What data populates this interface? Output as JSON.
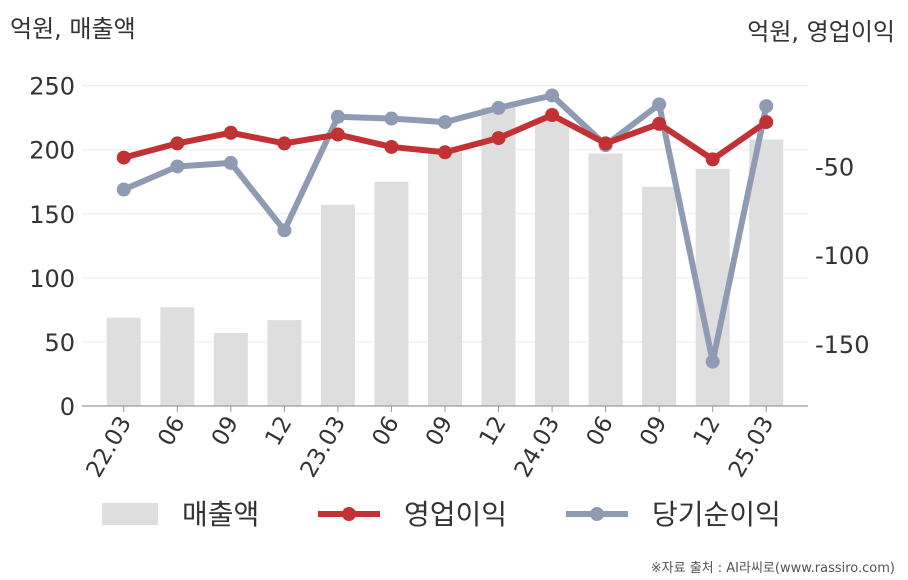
{
  "chart_data": {
    "type": "bar+line",
    "left_axis_label": "억원, 매출액",
    "right_axis_label": "억원, 영업이익",
    "categories": [
      "22.03",
      "06",
      "09",
      "12",
      "23.03",
      "06",
      "09",
      "12",
      "24.03",
      "06",
      "09",
      "12",
      "25.03"
    ],
    "y_left": {
      "ylim": [
        0,
        270
      ],
      "ticks": [
        0,
        50,
        100,
        150,
        200,
        250
      ]
    },
    "y_right": {
      "ylim": [
        -185,
        10
      ],
      "ticks": [
        -150,
        -100,
        -50
      ]
    },
    "series": [
      {
        "name": "매출액",
        "type": "bar",
        "axis": "left",
        "color": "#dedede",
        "values": [
          69,
          77,
          57,
          67,
          157,
          175,
          198,
          233,
          223,
          197,
          171,
          185,
          208
        ]
      },
      {
        "name": "영업이익",
        "type": "line",
        "axis": "right",
        "color": "#c23235",
        "values": [
          -45,
          -37,
          -31,
          -37,
          -32,
          -39,
          -42,
          -34,
          -21,
          -37,
          -26,
          -46,
          -25
        ]
      },
      {
        "name": "당기순이익",
        "type": "line",
        "axis": "right",
        "color": "#8f9bb3",
        "values": [
          -63,
          -50,
          -48,
          -86,
          -22,
          -23,
          -25,
          -17,
          -10,
          -38,
          -15,
          -160,
          -16
        ]
      }
    ],
    "legend_position": "bottom",
    "grid": true
  },
  "source": "※자료 출처 : AI라씨로(www.rassiro.com)"
}
